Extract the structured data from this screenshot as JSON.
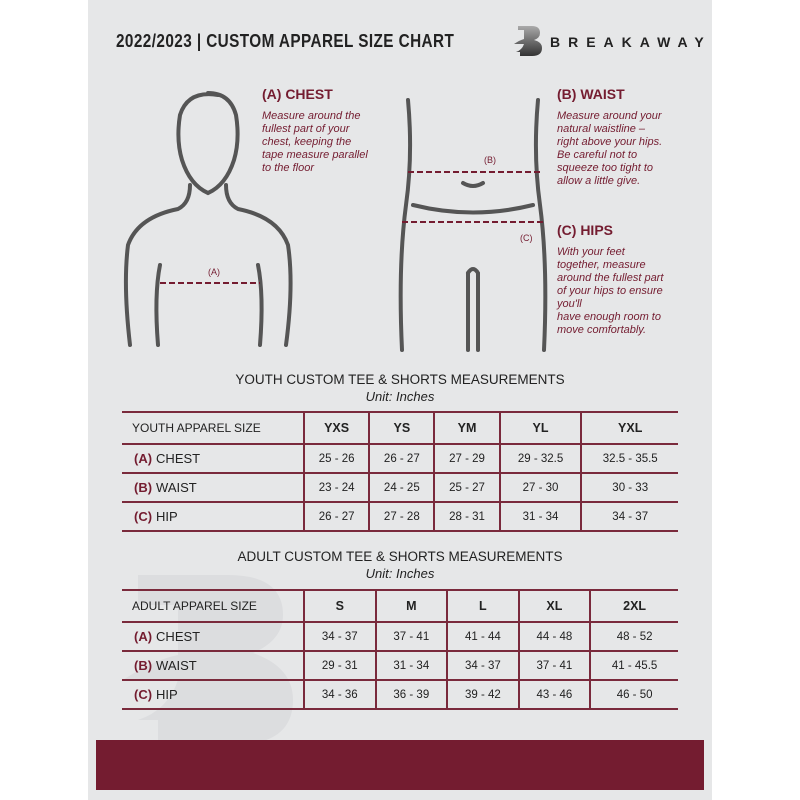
{
  "header": {
    "title": "2022/2023  |  CUSTOM APPAREL SIZE CHART",
    "brand": "BREAKAWAY",
    "logo_letter": "B"
  },
  "guide": {
    "chest": {
      "heading": "(A) CHEST",
      "marker": "(A)",
      "text": [
        "Measure around the",
        "fullest part of your",
        "chest, keeping the",
        "tape measure parallel",
        "to the floor"
      ]
    },
    "waist": {
      "heading": "(B) WAIST",
      "marker": "(B)",
      "text": [
        "Measure around your",
        "natural waistline –",
        "right above your hips.",
        "Be careful not to",
        "squeeze too tight to",
        "allow a little give."
      ]
    },
    "hips": {
      "heading": "(C) HIPS",
      "marker": "(C)",
      "text": [
        "With your feet",
        "together, measure",
        "around the fullest part",
        "of your hips to ensure",
        "you'll",
        "have enough room to",
        "move comfortably."
      ]
    }
  },
  "colors": {
    "accent": "#741c30",
    "background": "#e6e7e8"
  },
  "youth": {
    "title": "YOUTH CUSTOM TEE & SHORTS MEASUREMENTS",
    "unit": "Unit: Inches",
    "size_label": "YOUTH APPAREL SIZE",
    "sizes": [
      "YXS",
      "YS",
      "YM",
      "YL",
      "YXL"
    ],
    "rows": [
      {
        "tag": "(A)",
        "name": "CHEST",
        "values": [
          "25 - 26",
          "26 - 27",
          "27 - 29",
          "29 - 32.5",
          "32.5 - 35.5"
        ]
      },
      {
        "tag": "(B)",
        "name": "WAIST",
        "values": [
          "23 - 24",
          "24 - 25",
          "25 - 27",
          "27 - 30",
          "30 - 33"
        ]
      },
      {
        "tag": "(C)",
        "name": "HIP",
        "values": [
          "26 - 27",
          "27 - 28",
          "28 - 31",
          "31 - 34",
          "34 - 37"
        ]
      }
    ]
  },
  "adult": {
    "title": "ADULT CUSTOM TEE & SHORTS MEASUREMENTS",
    "unit": "Unit: Inches",
    "size_label": "ADULT APPAREL SIZE",
    "sizes": [
      "S",
      "M",
      "L",
      "XL",
      "2XL"
    ],
    "rows": [
      {
        "tag": "(A)",
        "name": "CHEST",
        "values": [
          "34 - 37",
          "37 - 41",
          "41 - 44",
          "44 - 48",
          "48 - 52"
        ]
      },
      {
        "tag": "(B)",
        "name": "WAIST",
        "values": [
          "29 - 31",
          "31 - 34",
          "34 - 37",
          "37 - 41",
          "41 - 45.5"
        ]
      },
      {
        "tag": "(C)",
        "name": "HIP",
        "values": [
          "34 - 36",
          "36 - 39",
          "39 - 42",
          "43 - 46",
          "46 - 50"
        ]
      }
    ]
  }
}
